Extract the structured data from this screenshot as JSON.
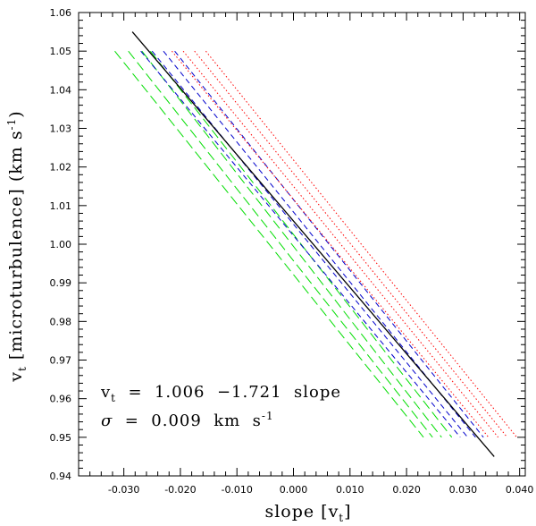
{
  "chart_data": {
    "type": "line",
    "xlabel": "slope [v_t]",
    "ylabel": "v_t [microturbulence] (km s^-1)",
    "xlim": [
      -0.038,
      0.041
    ],
    "ylim": [
      0.94,
      1.06
    ],
    "x_tick_labels": [
      "-0.030",
      "-0.020",
      "-0.010",
      "0.000",
      "0.010",
      "0.020",
      "0.030",
      "0.040"
    ],
    "y_tick_labels": [
      "0.94",
      "0.95",
      "0.96",
      "0.97",
      "0.98",
      "0.99",
      "1.00",
      "1.01",
      "1.02",
      "1.03",
      "1.04",
      "1.05",
      "1.06"
    ],
    "annotations": {
      "fit": "v_t = 1.006 -1.721 slope",
      "sigma": "σ = 0.009 km s^-1"
    },
    "fit_line": {
      "color": "#000000",
      "x": [
        -0.0285,
        0.0355
      ],
      "y": [
        1.055,
        0.945
      ]
    },
    "series_groups": [
      {
        "color": "#00dd00",
        "style": "long-dash",
        "lines": [
          {
            "x": [
              -0.0316,
              0.023
            ],
            "y": [
              1.05,
              0.95
            ]
          },
          {
            "x": [
              -0.0292,
              0.0246
            ],
            "y": [
              1.05,
              0.95
            ]
          },
          {
            "x": [
              -0.0268,
              0.0262
            ],
            "y": [
              1.05,
              0.95
            ]
          },
          {
            "x": [
              -0.0253,
              0.028
            ],
            "y": [
              1.05,
              0.95
            ]
          }
        ]
      },
      {
        "color": "#0000cc",
        "style": "dash",
        "lines": [
          {
            "x": [
              -0.027,
              0.0295
            ],
            "y": [
              1.05,
              0.95
            ]
          },
          {
            "x": [
              -0.025,
              0.0308
            ],
            "y": [
              1.05,
              0.95
            ]
          },
          {
            "x": [
              -0.023,
              0.0322
            ],
            "y": [
              1.05,
              0.95
            ]
          },
          {
            "x": [
              -0.021,
              0.0336
            ],
            "y": [
              1.05,
              0.95
            ]
          }
        ]
      },
      {
        "color": "#ff0000",
        "style": "dotted",
        "lines": [
          {
            "x": [
              -0.0215,
              0.0345
            ],
            "y": [
              1.05,
              0.95
            ]
          },
          {
            "x": [
              -0.0195,
              0.0362
            ],
            "y": [
              1.05,
              0.95
            ]
          },
          {
            "x": [
              -0.0175,
              0.0378
            ],
            "y": [
              1.05,
              0.95
            ]
          },
          {
            "x": [
              -0.0155,
              0.0395
            ],
            "y": [
              1.05,
              0.95
            ]
          }
        ]
      }
    ]
  }
}
